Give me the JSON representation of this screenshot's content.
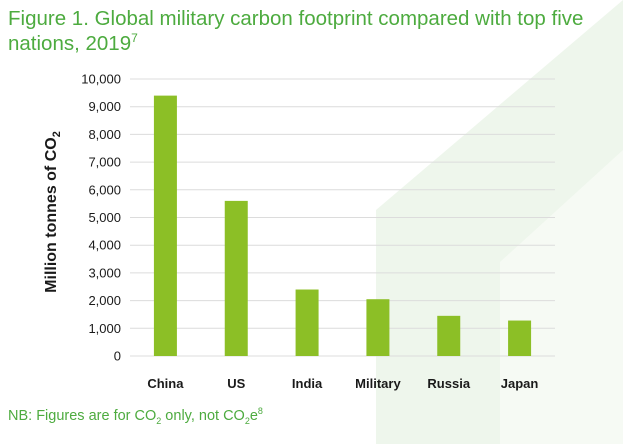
{
  "figure": {
    "title_main": "Figure 1. Global military carbon footprint compared with top five nations, 2019",
    "title_ref": "7"
  },
  "note": {
    "prefix": "NB: Figures are for CO",
    "sub1": "2",
    "middle": " only, not CO",
    "sub2": "2",
    "tail": "e",
    "ref": "8"
  },
  "colors": {
    "accent": "#4dab3f",
    "bar": "#8cbf26",
    "background_shape": "#eef6ec"
  },
  "chart_data": {
    "type": "bar",
    "categories": [
      "China",
      "US",
      "India",
      "Military",
      "Russia",
      "Japan"
    ],
    "values": [
      9400,
      5600,
      2400,
      2050,
      1450,
      1280
    ],
    "ylabel_main": "Million tonnes of CO",
    "ylabel_sub": "2",
    "ylim": [
      0,
      10000
    ],
    "yticks": [
      0,
      1000,
      2000,
      3000,
      4000,
      5000,
      6000,
      7000,
      8000,
      9000,
      10000
    ],
    "ytick_labels": [
      "0",
      "1,000",
      "2,000",
      "3,000",
      "4,000",
      "5,000",
      "6,000",
      "7,000",
      "8,000",
      "9,000",
      "10,000"
    ],
    "grid": true,
    "legend": "none"
  }
}
